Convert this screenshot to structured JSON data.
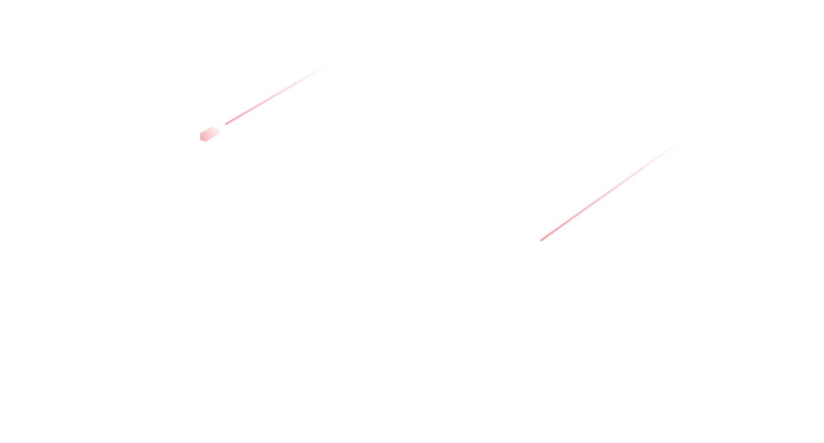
{
  "theme": {
    "background": "#ffffff",
    "streak_color": "#f4a6ac"
  },
  "decorations": [
    {
      "name": "meteor-streak",
      "has_head": true
    },
    {
      "name": "meteor-streak",
      "has_head": false
    }
  ]
}
